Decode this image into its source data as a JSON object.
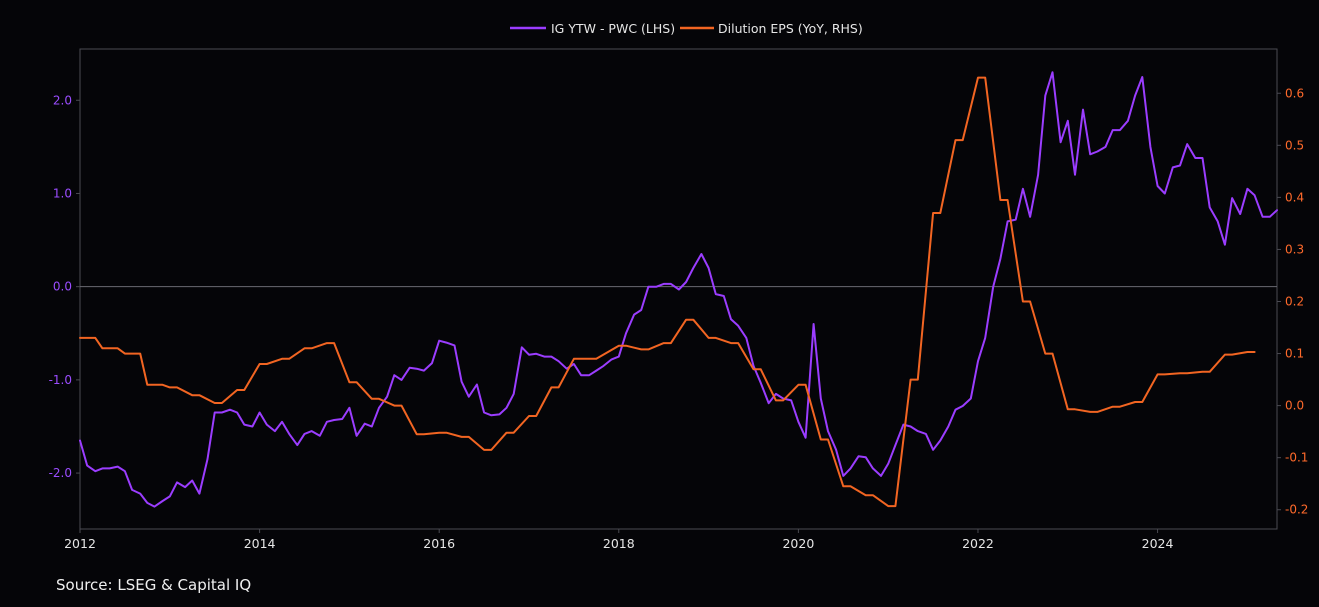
{
  "source_text": "Source: LSEG & Capital IQ",
  "chart_data": {
    "type": "line",
    "title": "",
    "legend_position": "top-center",
    "grid": false,
    "zero_line": true,
    "x_ticks": [
      "2012",
      "2014",
      "2016",
      "2018",
      "2020",
      "2022",
      "2024"
    ],
    "x_tick_values": [
      2012,
      2014,
      2016,
      2018,
      2020,
      2022,
      2024
    ],
    "xlim": [
      2012,
      2025.33
    ],
    "y_left": {
      "ticks": [
        "-2.0",
        "-1.0",
        "0.0",
        "1.0",
        "2.0"
      ],
      "tick_values": [
        -2,
        -1,
        0,
        1,
        2
      ],
      "lim": [
        -2.6,
        2.55
      ]
    },
    "y_right": {
      "ticks": [
        "-0.2",
        "-0.1",
        "0.0",
        "0.1",
        "0.2",
        "0.3",
        "0.4",
        "0.5",
        "0.6"
      ],
      "tick_values": [
        -0.2,
        -0.1,
        0,
        0.1,
        0.2,
        0.3,
        0.4,
        0.5,
        0.6
      ],
      "lim": [
        -0.237,
        0.685
      ]
    },
    "series": [
      {
        "name": "IG YTW - PWC (LHS)",
        "axis": "left",
        "color": "#9b3dff",
        "x": [
          2012.0,
          2012.08,
          2012.17,
          2012.25,
          2012.33,
          2012.42,
          2012.5,
          2012.58,
          2012.67,
          2012.75,
          2012.83,
          2012.92,
          2013.0,
          2013.08,
          2013.17,
          2013.25,
          2013.33,
          2013.42,
          2013.5,
          2013.58,
          2013.67,
          2013.75,
          2013.83,
          2013.92,
          2014.0,
          2014.08,
          2014.17,
          2014.25,
          2014.33,
          2014.42,
          2014.5,
          2014.58,
          2014.67,
          2014.75,
          2014.83,
          2014.92,
          2015.0,
          2015.08,
          2015.17,
          2015.25,
          2015.33,
          2015.42,
          2015.5,
          2015.58,
          2015.67,
          2015.75,
          2015.83,
          2015.92,
          2016.0,
          2016.08,
          2016.17,
          2016.25,
          2016.33,
          2016.42,
          2016.5,
          2016.58,
          2016.67,
          2016.75,
          2016.83,
          2016.92,
          2017.0,
          2017.08,
          2017.17,
          2017.25,
          2017.33,
          2017.42,
          2017.5,
          2017.58,
          2017.67,
          2017.75,
          2017.83,
          2017.92,
          2018.0,
          2018.08,
          2018.17,
          2018.25,
          2018.33,
          2018.42,
          2018.5,
          2018.58,
          2018.67,
          2018.75,
          2018.83,
          2018.92,
          2019.0,
          2019.08,
          2019.17,
          2019.25,
          2019.33,
          2019.42,
          2019.5,
          2019.58,
          2019.67,
          2019.75,
          2019.83,
          2019.92,
          2020.0,
          2020.08,
          2020.17,
          2020.25,
          2020.33,
          2020.42,
          2020.5,
          2020.58,
          2020.67,
          2020.75,
          2020.83,
          2020.92,
          2021.0,
          2021.08,
          2021.17,
          2021.25,
          2021.33,
          2021.42,
          2021.5,
          2021.58,
          2021.67,
          2021.75,
          2021.83,
          2021.92,
          2022.0,
          2022.08,
          2022.17,
          2022.25,
          2022.33,
          2022.42,
          2022.5,
          2022.58,
          2022.67,
          2022.75,
          2022.83,
          2022.92,
          2023.0,
          2023.08,
          2023.17,
          2023.25,
          2023.33,
          2023.42,
          2023.5,
          2023.58,
          2023.67,
          2023.75,
          2023.83,
          2023.92,
          2024.0,
          2024.08,
          2024.17,
          2024.25,
          2024.33,
          2024.42,
          2024.5,
          2024.58,
          2024.67,
          2024.75,
          2024.83,
          2024.92,
          2025.0,
          2025.08,
          2025.17,
          2025.25,
          2025.33
        ],
        "values": [
          -1.65,
          -1.92,
          -1.98,
          -1.95,
          -1.95,
          -1.93,
          -1.98,
          -2.18,
          -2.22,
          -2.32,
          -2.36,
          -2.3,
          -2.25,
          -2.1,
          -2.15,
          -2.08,
          -2.22,
          -1.85,
          -1.35,
          -1.35,
          -1.32,
          -1.35,
          -1.48,
          -1.5,
          -1.35,
          -1.48,
          -1.55,
          -1.45,
          -1.58,
          -1.7,
          -1.58,
          -1.55,
          -1.6,
          -1.45,
          -1.43,
          -1.42,
          -1.3,
          -1.6,
          -1.47,
          -1.5,
          -1.3,
          -1.18,
          -0.95,
          -1.0,
          -0.87,
          -0.88,
          -0.9,
          -0.82,
          -0.58,
          -0.6,
          -0.63,
          -1.02,
          -1.18,
          -1.05,
          -1.35,
          -1.38,
          -1.37,
          -1.3,
          -1.15,
          -0.65,
          -0.73,
          -0.72,
          -0.75,
          -0.75,
          -0.8,
          -0.88,
          -0.83,
          -0.95,
          -0.95,
          -0.9,
          -0.85,
          -0.78,
          -0.75,
          -0.5,
          -0.3,
          -0.25,
          0.0,
          0.0,
          0.03,
          0.03,
          -0.03,
          0.05,
          0.2,
          0.35,
          0.2,
          -0.08,
          -0.1,
          -0.35,
          -0.42,
          -0.55,
          -0.85,
          -1.03,
          -1.25,
          -1.15,
          -1.2,
          -1.22,
          -1.45,
          -1.62,
          -0.4,
          -1.2,
          -1.55,
          -1.75,
          -2.03,
          -1.95,
          -1.82,
          -1.83,
          -1.95,
          -2.03,
          -1.9,
          -1.7,
          -1.48,
          -1.5,
          -1.55,
          -1.58,
          -1.75,
          -1.65,
          -1.5,
          -1.32,
          -1.28,
          -1.2,
          -0.8,
          -0.55,
          0.0,
          0.3,
          0.7,
          0.72,
          1.05,
          0.75,
          1.2,
          2.05,
          2.3,
          1.55,
          1.78,
          1.2,
          1.9,
          1.42,
          1.45,
          1.5,
          1.68,
          1.68,
          1.78,
          2.05,
          2.25,
          1.5,
          1.08,
          1.0,
          1.28,
          1.3,
          1.53,
          1.38,
          1.38,
          0.85,
          0.7,
          0.45,
          0.95,
          0.78,
          1.05,
          0.98,
          0.75,
          0.75,
          0.82
        ]
      },
      {
        "name": "Dilution EPS (YoY, RHS)",
        "axis": "right",
        "color": "#f26522",
        "x": [
          2012.0,
          2012.17,
          2012.25,
          2012.42,
          2012.5,
          2012.67,
          2012.75,
          2012.92,
          2013.0,
          2013.08,
          2013.25,
          2013.33,
          2013.5,
          2013.58,
          2013.75,
          2013.83,
          2014.0,
          2014.08,
          2014.25,
          2014.33,
          2014.5,
          2014.58,
          2014.75,
          2014.83,
          2015.0,
          2015.08,
          2015.25,
          2015.33,
          2015.5,
          2015.58,
          2015.75,
          2015.83,
          2016.0,
          2016.08,
          2016.25,
          2016.33,
          2016.5,
          2016.58,
          2016.75,
          2016.83,
          2017.0,
          2017.08,
          2017.25,
          2017.33,
          2017.5,
          2017.58,
          2017.75,
          2018.0,
          2018.08,
          2018.25,
          2018.33,
          2018.5,
          2018.58,
          2018.75,
          2018.83,
          2019.0,
          2019.08,
          2019.25,
          2019.33,
          2019.5,
          2019.58,
          2019.75,
          2019.83,
          2020.0,
          2020.08,
          2020.25,
          2020.33,
          2020.5,
          2020.58,
          2020.75,
          2020.83,
          2021.0,
          2021.08,
          2021.25,
          2021.33,
          2021.5,
          2021.58,
          2021.75,
          2021.83,
          2022.0,
          2022.08,
          2022.25,
          2022.33,
          2022.5,
          2022.58,
          2022.75,
          2022.83,
          2023.0,
          2023.08,
          2023.25,
          2023.33,
          2023.5,
          2023.58,
          2023.75,
          2023.83,
          2024.0,
          2024.08,
          2024.25,
          2024.33,
          2024.5,
          2024.58,
          2024.75,
          2024.83,
          2025.0,
          2025.08
        ],
        "values": [
          0.13,
          0.13,
          0.11,
          0.11,
          0.1,
          0.1,
          0.04,
          0.04,
          0.035,
          0.035,
          0.02,
          0.02,
          0.005,
          0.005,
          0.03,
          0.03,
          0.08,
          0.08,
          0.09,
          0.09,
          0.11,
          0.11,
          0.12,
          0.12,
          0.045,
          0.045,
          0.013,
          0.013,
          0.0,
          0.0,
          -0.055,
          -0.055,
          -0.052,
          -0.052,
          -0.06,
          -0.06,
          -0.085,
          -0.085,
          -0.052,
          -0.052,
          -0.02,
          -0.02,
          0.035,
          0.035,
          0.09,
          0.09,
          0.09,
          0.115,
          0.115,
          0.108,
          0.108,
          0.12,
          0.12,
          0.165,
          0.165,
          0.13,
          0.13,
          0.12,
          0.12,
          0.07,
          0.07,
          0.01,
          0.01,
          0.04,
          0.04,
          -0.065,
          -0.065,
          -0.155,
          -0.155,
          -0.172,
          -0.172,
          -0.193,
          -0.193,
          0.05,
          0.05,
          0.37,
          0.37,
          0.51,
          0.51,
          0.63,
          0.63,
          0.395,
          0.395,
          0.2,
          0.2,
          0.1,
          0.1,
          -0.007,
          -0.007,
          -0.012,
          -0.012,
          -0.002,
          -0.002,
          0.007,
          0.007,
          0.06,
          0.06,
          0.062,
          0.062,
          0.065,
          0.065,
          0.098,
          0.098,
          0.103,
          0.103
        ]
      }
    ]
  }
}
